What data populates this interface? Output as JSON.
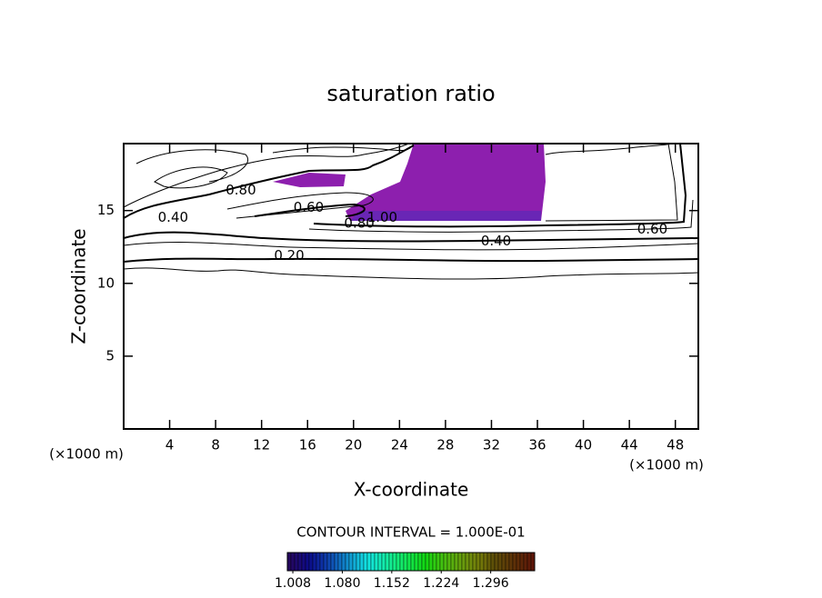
{
  "chart_data": {
    "type": "contour",
    "title": "saturation ratio",
    "x_label": "X-coordinate",
    "y_label": "Z-coordinate",
    "x_unit": "(×1000 m)",
    "y_unit": "(×1000 m)",
    "xlim": [
      0,
      50
    ],
    "xticks": [
      4,
      8,
      12,
      16,
      20,
      24,
      28,
      32,
      36,
      40,
      44,
      48
    ],
    "ylim": [
      0,
      19.6
    ],
    "yticks": [
      5,
      10,
      15
    ],
    "contour_labels": [
      {
        "label": "0.40",
        "x": 4.3,
        "y": 14.5
      },
      {
        "label": "0.20",
        "x": 14.4,
        "y": 11.9
      },
      {
        "label": "0.60",
        "x": 16.1,
        "y": 15.2
      },
      {
        "label": "0.80",
        "x": 10.2,
        "y": 16.4
      },
      {
        "label": "0.80",
        "x": 20.5,
        "y": 14.1
      },
      {
        "label": "1.00",
        "x": 22.5,
        "y": 14.5
      },
      {
        "label": "0.40",
        "x": 32.4,
        "y": 12.9
      },
      {
        "label": "0.60",
        "x": 46,
        "y": 13.7
      }
    ],
    "contour_interval": "CONTOUR INTERVAL = 1.000E-01",
    "colorbar": {
      "clim": [
        1.0,
        1.36
      ],
      "ticks": [
        1.008,
        {
          "value": 1.08,
          "label": "1.080"
        },
        1.152,
        1.224,
        1.296
      ]
    }
  }
}
